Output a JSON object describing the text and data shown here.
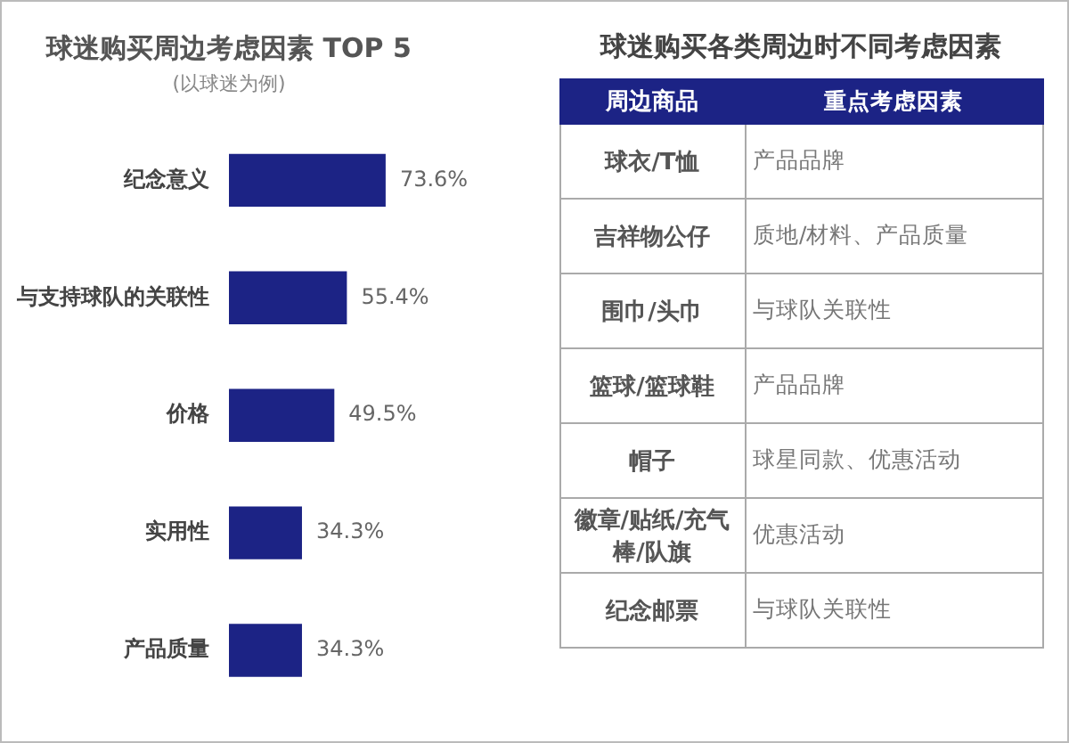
{
  "chart_data": [
    {
      "type": "bar",
      "orientation": "horizontal",
      "title": "球迷购买周边考虑因素 TOP 5",
      "subtitle": "(以球迷为例)",
      "categories": [
        "纪念意义",
        "与支持球队的关联性",
        "价格",
        "实用性",
        "产品质量"
      ],
      "values": [
        73.6,
        55.4,
        49.5,
        34.3,
        34.3
      ],
      "value_labels": [
        "73.6%",
        "55.4%",
        "49.5%",
        "34.3%",
        "34.3%"
      ],
      "color": "#1c2385",
      "legend": false,
      "tick_labels": "y"
    },
    {
      "type": "other",
      "title": "球迷购买各类周边时不同考虑因素",
      "annotations": [
        "周边商品",
        "重点考虑因素",
        "球衣/T恤",
        "产品品牌",
        "吉祥物公仔",
        "质地/材料、产品质量",
        "围巾/头巾",
        "与球队关联性",
        "篮球/篮球鞋",
        "产品品牌",
        "帽子",
        "球星同款、优惠活动",
        "徽章/贴纸/充气棒/队旗",
        "优惠活动",
        "纪念邮票",
        "与球队关联性"
      ]
    }
  ]
}
